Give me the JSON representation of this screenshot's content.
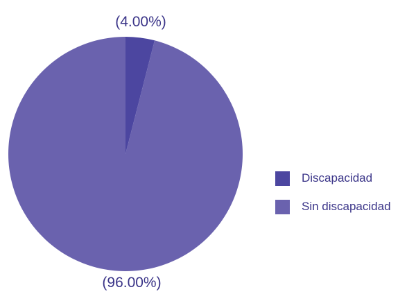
{
  "chart_data": {
    "type": "pie",
    "categories": [
      "Discapacidad",
      "Sin discapacidad"
    ],
    "values": [
      4.0,
      96.0
    ],
    "value_labels": [
      "(4.00%)",
      "(96.00%)"
    ],
    "colors": [
      "#4c46a0",
      "#6a62ae"
    ],
    "start_angle_deg": 0,
    "direction": "clockwise",
    "legend_position": "right"
  },
  "legend": {
    "items": [
      {
        "label": "Discapacidad",
        "color": "#4c46a0"
      },
      {
        "label": "Sin discapacidad",
        "color": "#6a62ae"
      }
    ]
  }
}
